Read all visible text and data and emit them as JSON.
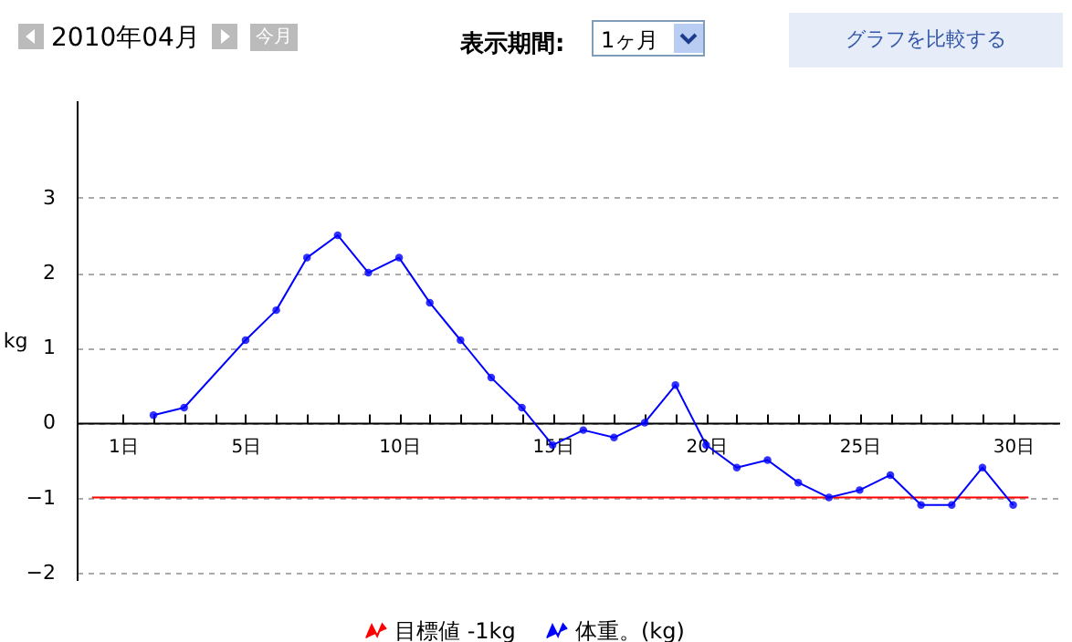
{
  "chart_data": {
    "type": "line",
    "title": "2010年04月",
    "annotations": [
      "今月",
      "表示期間:",
      "1ヶ月",
      "グラフを比較する"
    ],
    "ylabel": "kg",
    "xlim": [
      -0.5,
      31.5
    ],
    "xticks": [
      {
        "value": 1,
        "label": "1日"
      },
      {
        "value": 2,
        "label": null
      },
      {
        "value": 3,
        "label": null
      },
      {
        "value": 4,
        "label": null
      },
      {
        "value": 5,
        "label": "5日"
      },
      {
        "value": 6,
        "label": null
      },
      {
        "value": 7,
        "label": null
      },
      {
        "value": 8,
        "label": null
      },
      {
        "value": 9,
        "label": null
      },
      {
        "value": 10,
        "label": "10日"
      },
      {
        "value": 11,
        "label": null
      },
      {
        "value": 12,
        "label": null
      },
      {
        "value": 13,
        "label": null
      },
      {
        "value": 14,
        "label": null
      },
      {
        "value": 15,
        "label": "15日"
      },
      {
        "value": 16,
        "label": null
      },
      {
        "value": 17,
        "label": null
      },
      {
        "value": 18,
        "label": null
      },
      {
        "value": 19,
        "label": null
      },
      {
        "value": 20,
        "label": "20日"
      },
      {
        "value": 21,
        "label": null
      },
      {
        "value": 22,
        "label": null
      },
      {
        "value": 23,
        "label": null
      },
      {
        "value": 24,
        "label": null
      },
      {
        "value": 25,
        "label": "25日"
      },
      {
        "value": 26,
        "label": null
      },
      {
        "value": 27,
        "label": null
      },
      {
        "value": 28,
        "label": null
      },
      {
        "value": 29,
        "label": null
      },
      {
        "value": 30,
        "label": "30日"
      }
    ],
    "ylim": [
      -2.1,
      4.3
    ],
    "yticks": [
      -2,
      -1,
      0,
      1,
      2,
      3
    ],
    "grid": "y",
    "legend": "bottom",
    "series": [
      {
        "name": "目標値 -1kg",
        "color": "#ff0000",
        "x": [
          0,
          30.5
        ],
        "values": [
          -1,
          -1
        ]
      },
      {
        "name": "体重。(kg)",
        "color": "#0000ff",
        "marker": "circle",
        "x": [
          2,
          3,
          5,
          6,
          7,
          8,
          9,
          10,
          11,
          12,
          13,
          14,
          15,
          16,
          17,
          18,
          19,
          20,
          21,
          22,
          23,
          24,
          25,
          26,
          27,
          28,
          29,
          30
        ],
        "values": [
          0.1,
          0.2,
          1.1,
          1.5,
          2.2,
          2.5,
          2.0,
          2.2,
          1.6,
          1.1,
          0.6,
          0.2,
          -0.3,
          -0.1,
          -0.2,
          0.0,
          0.5,
          -0.3,
          -0.6,
          -0.5,
          -0.8,
          -1.0,
          -0.9,
          -0.7,
          -1.1,
          -1.1,
          -0.6,
          -1.1
        ]
      }
    ]
  }
}
